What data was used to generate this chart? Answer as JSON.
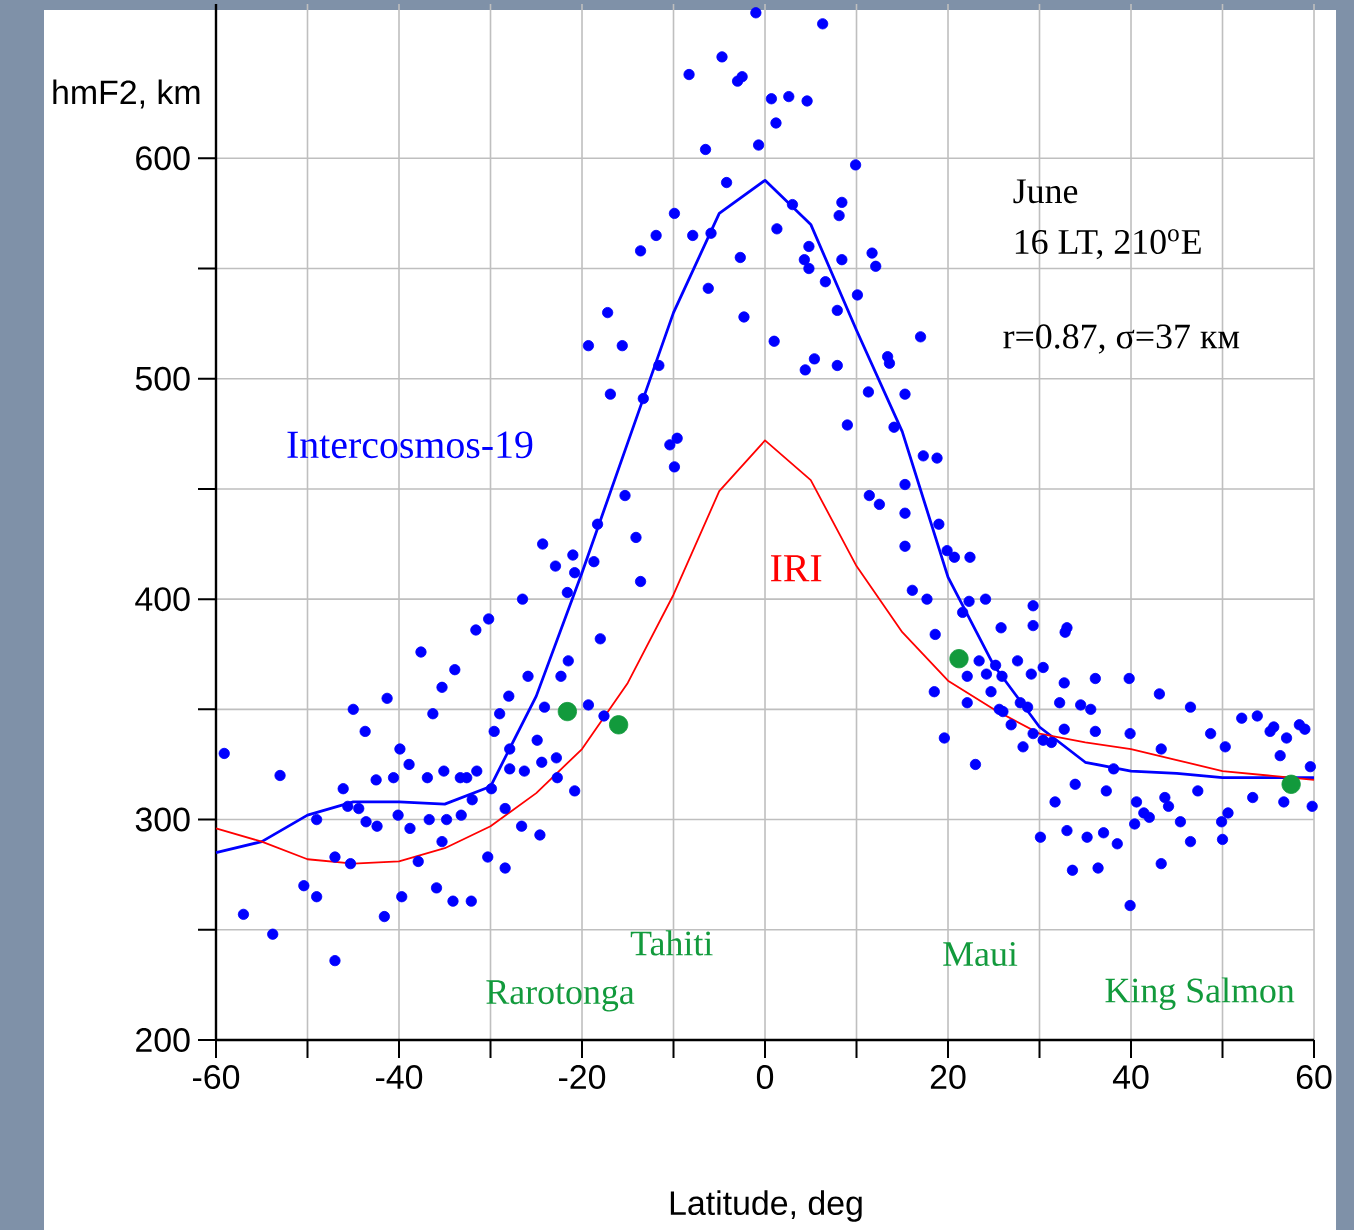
{
  "chart_data": {
    "type": "scatter",
    "xlabel": "Latitude, deg",
    "ylabel": "hmF2, km",
    "xlim": [
      -60,
      60
    ],
    "ylim": [
      200,
      670
    ],
    "xticks": [
      -60,
      {
        "value": -50,
        "label": null
      },
      -40,
      {
        "value": -30,
        "label": null
      },
      -20,
      {
        "value": -10,
        "label": null
      },
      0,
      {
        "value": 10,
        "label": null
      },
      20,
      {
        "value": 30,
        "label": null
      },
      40,
      {
        "value": 50,
        "label": null
      },
      60
    ],
    "yticks": [
      200,
      {
        "value": 250,
        "label": null
      },
      300,
      {
        "value": 350,
        "label": null
      },
      400,
      {
        "value": 450,
        "label": null
      },
      500,
      {
        "value": 550,
        "label": null
      },
      600
    ],
    "grid": true,
    "series": [
      {
        "marker": "circle",
        "color": "#0000ff",
        "x": [
          -59.1,
          -53.0,
          -57.0,
          -53.8,
          -47.0,
          -50.4,
          -49.0,
          -49.0,
          -47.0,
          -45.3,
          -46.1,
          -45.6,
          -44.4,
          -45.0,
          -43.7,
          -43.6,
          -42.4,
          -42.5,
          -41.3,
          -40.6,
          -41.6,
          -39.9,
          -40.1,
          -39.7,
          -38.9,
          -38.8,
          -37.9,
          -37.6,
          -36.9,
          -36.7,
          -36.3,
          -35.9,
          -35.3,
          -35.3,
          -35.1,
          -34.8,
          -34.1,
          -33.9,
          -33.3,
          -33.2,
          -32.6,
          -32.1,
          -32.0,
          -31.6,
          -31.5,
          -30.2,
          -30.3,
          -29.6,
          -29.9,
          -29.0,
          -28.4,
          -28.4,
          -28.0,
          -27.9,
          -27.9,
          -26.5,
          -26.6,
          -26.3,
          -25.9,
          -24.9,
          -24.6,
          -24.3,
          -24.1,
          -24.4,
          -22.9,
          -22.7,
          -22.8,
          -21.6,
          -21.5,
          -22.3,
          -21.0,
          -20.8,
          -20.8,
          -1.0,
          6.3,
          -8.3,
          -4.7,
          -3.0,
          -2.5,
          0.7,
          2.6,
          4.6,
          1.2,
          -0.7,
          -6.5,
          -4.2,
          9.9,
          -9.9,
          -7.9,
          -5.9,
          -11.9,
          -13.6,
          -2.7,
          3.0,
          1.3,
          8.4,
          8.1,
          4.3,
          4.8,
          4.8,
          6.6,
          8.4,
          11.7,
          12.1,
          -6.2,
          10.1,
          7.9,
          -2.3,
          -17.2,
          -15.6,
          -19.3,
          1.0,
          -11.6,
          5.4,
          4.4,
          7.9,
          13.4,
          13.6,
          17.0,
          -16.9,
          -13.3,
          11.3,
          15.3,
          -10.4,
          -9.6,
          -9.9,
          9.0,
          14.1,
          17.3,
          18.8,
          -15.3,
          -18.3,
          -14.1,
          -13.6,
          11.4,
          12.5,
          15.3,
          15.3,
          15.3,
          16.1,
          17.7,
          18.6,
          -18.7,
          -18.0,
          -19.3,
          18.5,
          19.6,
          -17.6,
          19.0,
          19.9,
          20.7,
          22.4,
          22.3,
          21.6,
          24.1,
          25.8,
          23.4,
          22.1,
          24.7,
          22.1,
          25.2,
          25.9,
          24.2,
          25.6,
          26.0,
          26.9,
          23.0,
          27.6,
          27.9,
          28.7,
          29.1,
          30.4,
          29.3,
          29.3,
          28.2,
          29.3,
          30.4,
          31.3,
          30.1,
          31.7,
          32.7,
          32.2,
          32.8,
          33.0,
          32.7,
          33.0,
          33.9,
          33.6,
          34.5,
          35.6,
          35.2,
          36.1,
          36.1,
          36.4,
          37.0,
          37.3,
          38.1,
          38.5,
          39.8,
          39.9,
          39.9,
          40.4,
          40.6,
          41.4,
          42.0,
          43.1,
          43.3,
          43.3,
          43.7,
          44.1,
          45.4,
          46.5,
          46.5,
          47.3,
          48.7,
          49.9,
          50.0,
          50.6,
          50.3,
          52.1,
          53.3,
          53.8,
          55.2,
          55.6,
          56.3,
          56.7,
          57.0,
          58.4,
          59.0,
          59.6,
          59.8
        ],
        "values": [
          330,
          320,
          257,
          248,
          236,
          270,
          265,
          300,
          283,
          280,
          314,
          306,
          305,
          350,
          340,
          299,
          297,
          318,
          355,
          319,
          256,
          332,
          302,
          265,
          325,
          296,
          281,
          376,
          319,
          300,
          348,
          269,
          360,
          290,
          322,
          300,
          263,
          368,
          319,
          302,
          319,
          263,
          309,
          386,
          322,
          391,
          283,
          340,
          314,
          348,
          305,
          278,
          356,
          332,
          323,
          400,
          297,
          322,
          365,
          336,
          293,
          425,
          351,
          326,
          415,
          319,
          328,
          403,
          372,
          365,
          420,
          412,
          313,
          666,
          661,
          638,
          646,
          635,
          637,
          627,
          628,
          626,
          616,
          606,
          604,
          589,
          597,
          575,
          565,
          566,
          565,
          558,
          555,
          579,
          568,
          580,
          574,
          554,
          560,
          550,
          544,
          554,
          557,
          551,
          541,
          538,
          531,
          528,
          530,
          515,
          515,
          517,
          506,
          509,
          504,
          506,
          510,
          507,
          519,
          493,
          491,
          494,
          493,
          470,
          473,
          460,
          479,
          478,
          465,
          464,
          447,
          434,
          428,
          408,
          447,
          443,
          439,
          424,
          452,
          404,
          400,
          384,
          417,
          382,
          352,
          358,
          337,
          347,
          434,
          422,
          419,
          419,
          399,
          394,
          400,
          387,
          372,
          365,
          358,
          353,
          370,
          365,
          366,
          350,
          349,
          343,
          325,
          372,
          353,
          351,
          366,
          369,
          397,
          388,
          333,
          339,
          336,
          335,
          292,
          308,
          362,
          353,
          385,
          387,
          341,
          295,
          316,
          277,
          352,
          350,
          292,
          364,
          340,
          278,
          294,
          313,
          323,
          289,
          364,
          339,
          261,
          298,
          308,
          303,
          301,
          357,
          332,
          280,
          310,
          306,
          299,
          351,
          290,
          313,
          339,
          299,
          291,
          303,
          333,
          346,
          310,
          347,
          340,
          342,
          329,
          308,
          337,
          343,
          341,
          324,
          306
        ]
      },
      {
        "type": "line",
        "marker": "none",
        "name": "Intercosmos-19",
        "color": "#0000ff",
        "x": [
          -60,
          -55,
          -50,
          -45,
          -40,
          -35,
          -30,
          -25,
          -20,
          -15,
          -10,
          -5,
          0,
          5,
          10,
          15,
          20,
          25,
          30,
          35,
          40,
          45,
          50,
          55,
          60
        ],
        "values": [
          285,
          290,
          302,
          308,
          308,
          307,
          315,
          356,
          412,
          471,
          530,
          575,
          590,
          570,
          522,
          476,
          410,
          370,
          342,
          326,
          322,
          321,
          319,
          319,
          319
        ]
      },
      {
        "type": "line",
        "marker": "none",
        "name": "IRI",
        "color": "#ff0000",
        "x": [
          -60,
          -55,
          -50,
          -45,
          -40,
          -35,
          -30,
          -25,
          -20,
          -15,
          -10,
          -5,
          0,
          5,
          10,
          15,
          20,
          25,
          30,
          35,
          40,
          45,
          50,
          55,
          60
        ],
        "values": [
          296,
          290,
          282,
          280,
          281,
          287,
          297,
          312,
          332,
          362,
          402,
          449,
          472,
          454,
          415,
          385,
          363,
          350,
          339,
          335,
          332,
          327,
          322,
          320,
          318
        ]
      },
      {
        "marker": "circle",
        "color": "#129a3c",
        "x": [
          -21.6,
          -16.0,
          21.2,
          57.5
        ],
        "values": [
          349,
          343,
          373,
          316
        ]
      }
    ],
    "annotations": [
      "June",
      "16 LT, 210$^{o}$E",
      "r=0.87, σ=37 км",
      "Rarotonga",
      "Tahiti",
      "Maui",
      "King Salmon"
    ]
  }
}
